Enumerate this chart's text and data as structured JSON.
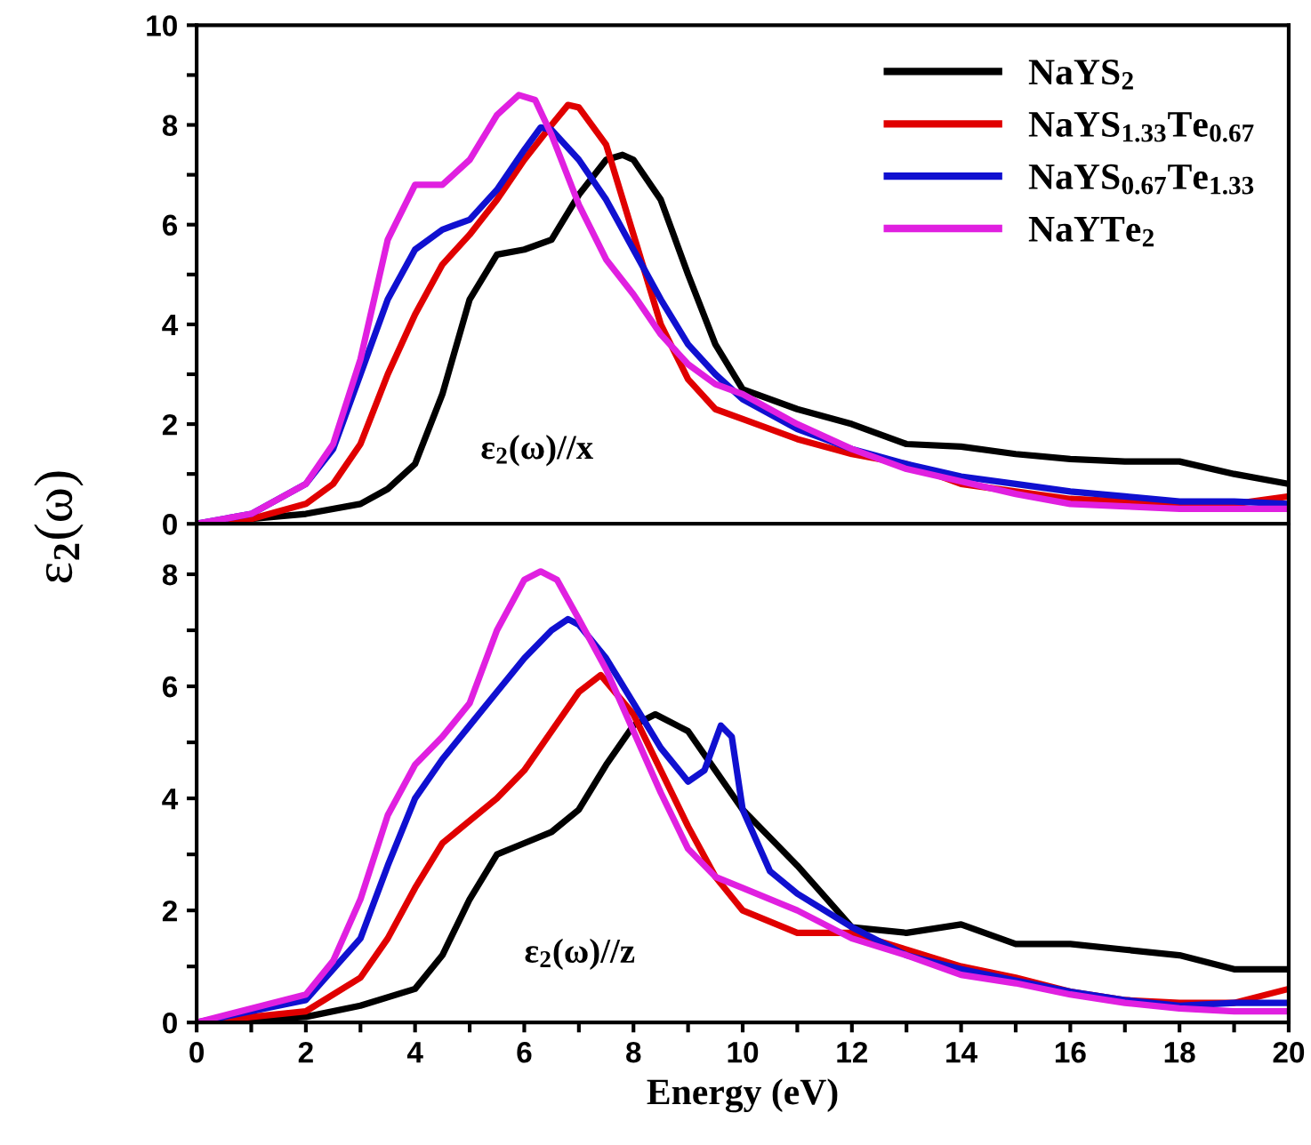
{
  "chart_data": [
    {
      "type": "line",
      "ylabel": "ε$_{2}$(ω)",
      "annotations": [
        "ε$_{2}$(ω)//x"
      ],
      "xlim": [
        0,
        20
      ],
      "xticks": [
        0,
        {
          "value": 1,
          "label": null
        },
        {
          "value": 2,
          "label": null
        },
        {
          "value": 3,
          "label": null
        },
        {
          "value": 4,
          "label": null
        },
        {
          "value": 5,
          "label": null
        },
        {
          "value": 6,
          "label": null
        },
        {
          "value": 7,
          "label": null
        },
        {
          "value": 8,
          "label": null
        },
        {
          "value": 9,
          "label": null
        },
        {
          "value": 10,
          "label": null
        },
        {
          "value": 11,
          "label": null
        },
        {
          "value": 12,
          "label": null
        },
        {
          "value": 13,
          "label": null
        },
        {
          "value": 14,
          "label": null
        },
        {
          "value": 15,
          "label": null
        },
        {
          "value": 16,
          "label": null
        },
        {
          "value": 17,
          "label": null
        },
        {
          "value": 18,
          "label": null
        },
        {
          "value": 19,
          "label": null
        },
        {
          "value": 20,
          "label": null
        }
      ],
      "ylim": [
        0,
        10
      ],
      "yticks": [
        0,
        {
          "value": 1,
          "label": null
        },
        2,
        {
          "value": 3,
          "label": null
        },
        4,
        {
          "value": 5,
          "label": null
        },
        6,
        {
          "value": 7,
          "label": null
        },
        8,
        {
          "value": 9,
          "label": null
        },
        10
      ],
      "tick_labels": "y",
      "legend": "top right",
      "grid": false,
      "line_style": "solid",
      "marker": "none",
      "series": [
        {
          "name": "NaYS$_{2}$",
          "color": "#000000",
          "x": [
            0,
            1,
            2,
            3,
            3.5,
            4,
            4.5,
            5,
            5.5,
            6,
            6.5,
            7,
            7.5,
            7.8,
            8,
            8.5,
            9,
            9.5,
            10,
            11,
            12,
            13,
            14,
            15,
            16,
            17,
            18,
            19,
            20
          ],
          "values": [
            0,
            0.1,
            0.2,
            0.4,
            0.7,
            1.2,
            2.6,
            4.5,
            5.4,
            5.5,
            5.7,
            6.6,
            7.3,
            7.4,
            7.3,
            6.5,
            5.0,
            3.6,
            2.7,
            2.3,
            2.0,
            1.6,
            1.55,
            1.4,
            1.3,
            1.25,
            1.25,
            1.0,
            0.8
          ]
        },
        {
          "name": "NaYS$_{1.33}$Te$_{0.67}$",
          "color": "#e00000",
          "x": [
            0,
            1,
            2,
            2.5,
            3,
            3.5,
            4,
            4.5,
            5,
            5.5,
            6,
            6.5,
            6.8,
            7,
            7.5,
            8,
            8.5,
            9,
            9.5,
            10,
            11,
            12,
            13,
            14,
            15,
            16,
            17,
            18,
            19,
            20
          ],
          "values": [
            0,
            0.1,
            0.4,
            0.8,
            1.6,
            3.0,
            4.2,
            5.2,
            5.8,
            6.5,
            7.3,
            8.0,
            8.4,
            8.35,
            7.6,
            5.8,
            4.0,
            2.9,
            2.3,
            2.1,
            1.7,
            1.4,
            1.2,
            0.8,
            0.65,
            0.5,
            0.45,
            0.4,
            0.4,
            0.55
          ]
        },
        {
          "name": "NaYS$_{0.67}$Te$_{1.33}$",
          "color": "#1010d0",
          "x": [
            0,
            1,
            2,
            2.5,
            3,
            3.5,
            4,
            4.5,
            5,
            5.5,
            6,
            6.3,
            6.5,
            7,
            7.5,
            8,
            8.5,
            9,
            9.5,
            10,
            11,
            12,
            13,
            14,
            15,
            16,
            17,
            18,
            19,
            20
          ],
          "values": [
            0,
            0.2,
            0.8,
            1.5,
            3.0,
            4.5,
            5.5,
            5.9,
            6.1,
            6.7,
            7.5,
            7.95,
            7.9,
            7.3,
            6.5,
            5.5,
            4.5,
            3.6,
            3.0,
            2.5,
            1.9,
            1.5,
            1.2,
            0.95,
            0.8,
            0.65,
            0.55,
            0.45,
            0.45,
            0.4
          ]
        },
        {
          "name": "NaYTe$_{2}$",
          "color": "#e020e0",
          "x": [
            0,
            1,
            2,
            2.5,
            3,
            3.5,
            4,
            4.5,
            5,
            5.5,
            5.9,
            6.2,
            6.5,
            7,
            7.5,
            8,
            8.5,
            9,
            9.5,
            10,
            11,
            12,
            13,
            14,
            15,
            16,
            17,
            18,
            19,
            20
          ],
          "values": [
            0,
            0.2,
            0.8,
            1.6,
            3.3,
            5.7,
            6.8,
            6.8,
            7.3,
            8.2,
            8.6,
            8.5,
            7.8,
            6.4,
            5.3,
            4.6,
            3.8,
            3.2,
            2.8,
            2.6,
            2.0,
            1.5,
            1.1,
            0.85,
            0.6,
            0.4,
            0.35,
            0.3,
            0.3,
            0.3
          ]
        }
      ]
    },
    {
      "type": "line",
      "xlabel": "Energy (eV)",
      "annotations": [
        "ε$_{2}$(ω)//z"
      ],
      "xlim": [
        0,
        20
      ],
      "xticks": [
        0,
        {
          "value": 1,
          "label": null
        },
        2,
        {
          "value": 3,
          "label": null
        },
        4,
        {
          "value": 5,
          "label": null
        },
        6,
        {
          "value": 7,
          "label": null
        },
        8,
        {
          "value": 9,
          "label": null
        },
        10,
        {
          "value": 11,
          "label": null
        },
        12,
        {
          "value": 13,
          "label": null
        },
        14,
        {
          "value": 15,
          "label": null
        },
        16,
        {
          "value": 17,
          "label": null
        },
        18,
        {
          "value": 19,
          "label": null
        },
        20
      ],
      "ylim": [
        0,
        8.9
      ],
      "yticks": [
        0,
        {
          "value": 1,
          "label": null
        },
        2,
        {
          "value": 3,
          "label": null
        },
        4,
        {
          "value": 5,
          "label": null
        },
        6,
        {
          "value": 7,
          "label": null
        },
        8
      ],
      "grid": false,
      "line_style": "solid",
      "marker": "none",
      "series": [
        {
          "color": "#000000",
          "x": [
            0,
            2,
            3,
            4,
            4.5,
            5,
            5.5,
            6,
            6.5,
            7,
            7.5,
            8,
            8.4,
            9,
            9.5,
            10,
            11,
            12,
            13,
            14,
            15,
            16,
            17,
            18,
            19,
            20
          ],
          "values": [
            0,
            0.1,
            0.3,
            0.6,
            1.2,
            2.2,
            3.0,
            3.2,
            3.4,
            3.8,
            4.6,
            5.3,
            5.5,
            5.2,
            4.5,
            3.8,
            2.8,
            1.7,
            1.6,
            1.75,
            1.4,
            1.4,
            1.3,
            1.2,
            0.95,
            0.95
          ]
        },
        {
          "color": "#e00000",
          "x": [
            0,
            2,
            3,
            3.5,
            4,
            4.5,
            5,
            5.5,
            6,
            6.5,
            7,
            7.4,
            8,
            8.5,
            9,
            9.5,
            10,
            11,
            12,
            13,
            14,
            15,
            16,
            17,
            18,
            19,
            20
          ],
          "values": [
            0,
            0.2,
            0.8,
            1.5,
            2.4,
            3.2,
            3.6,
            4.0,
            4.5,
            5.2,
            5.9,
            6.2,
            5.5,
            4.5,
            3.5,
            2.6,
            2.0,
            1.6,
            1.6,
            1.3,
            1.0,
            0.8,
            0.55,
            0.4,
            0.35,
            0.35,
            0.6
          ]
        },
        {
          "color": "#1010d0",
          "x": [
            0,
            2,
            3,
            3.5,
            4,
            4.5,
            5,
            5.5,
            6,
            6.5,
            6.8,
            7,
            7.5,
            8,
            8.5,
            9,
            9.3,
            9.6,
            9.8,
            10,
            10.5,
            11,
            12,
            13,
            14,
            15,
            16,
            17,
            18,
            19,
            20
          ],
          "values": [
            0,
            0.4,
            1.5,
            2.8,
            4.0,
            4.7,
            5.3,
            5.9,
            6.5,
            7.0,
            7.2,
            7.1,
            6.5,
            5.7,
            4.9,
            4.3,
            4.5,
            5.3,
            5.1,
            3.8,
            2.7,
            2.3,
            1.7,
            1.2,
            0.95,
            0.75,
            0.55,
            0.4,
            0.3,
            0.35,
            0.35
          ]
        },
        {
          "color": "#e020e0",
          "x": [
            0,
            2,
            2.5,
            3,
            3.5,
            4,
            4.5,
            5,
            5.5,
            6,
            6.3,
            6.6,
            7,
            7.5,
            8,
            8.5,
            9,
            9.5,
            10,
            11,
            12,
            13,
            14,
            15,
            16,
            17,
            18,
            19,
            20
          ],
          "values": [
            0,
            0.5,
            1.1,
            2.2,
            3.7,
            4.6,
            5.1,
            5.7,
            7.0,
            7.9,
            8.05,
            7.9,
            7.2,
            6.3,
            5.2,
            4.1,
            3.1,
            2.6,
            2.4,
            2.0,
            1.5,
            1.2,
            0.85,
            0.7,
            0.5,
            0.35,
            0.25,
            0.2,
            0.2
          ]
        }
      ]
    }
  ]
}
